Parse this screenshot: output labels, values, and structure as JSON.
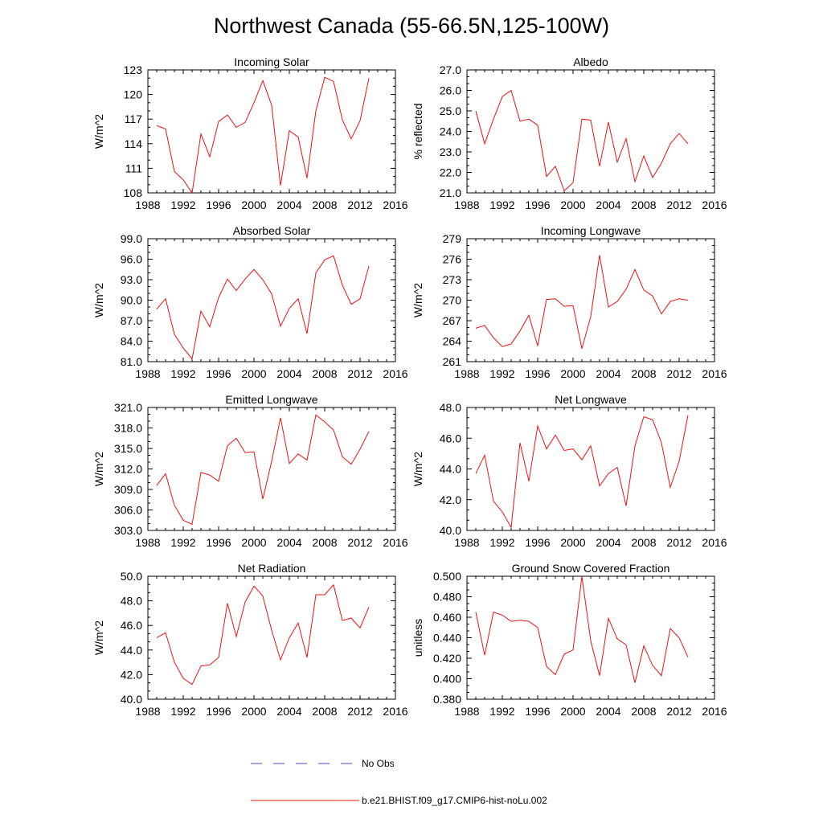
{
  "figure_title": "Northwest Canada (55-66.5N,125-100W)",
  "legend": [
    {
      "label": "No Obs",
      "color": "#4b4bcc",
      "style": "dashed"
    },
    {
      "label": "b.e21.BHIST.f09_g17.CMIP6-hist-noLu.002",
      "color": "#ee1111",
      "style": "solid"
    }
  ],
  "chart_data": [
    {
      "type": "line",
      "title": "Incoming Solar",
      "ylabel": "W/m^2",
      "xlabel": "",
      "xlim": [
        1988,
        2016
      ],
      "ylim": [
        108,
        123
      ],
      "x_ticks": [
        "1988",
        "1992",
        "1996",
        "2000",
        "2004",
        "2008",
        "2012",
        "2016"
      ],
      "y_ticks": [
        "108",
        "111",
        "114",
        "117",
        "120",
        "123"
      ],
      "y_tick_values": [
        108,
        111,
        114,
        117,
        120,
        123
      ],
      "series": [
        {
          "name": "b.e21.BHIST.f09_g17.CMIP6-hist-noLu.002",
          "color": "#ee1111",
          "x": [
            1989,
            1990,
            1991,
            1992,
            1993,
            1994,
            1995,
            1996,
            1997,
            1998,
            1999,
            2000,
            2001,
            2002,
            2003,
            2004,
            2005,
            2006,
            2007,
            2008,
            2009,
            2010,
            2011,
            2012,
            2013
          ],
          "values": [
            116.2,
            115.8,
            110.6,
            109.6,
            108.0,
            115.2,
            112.4,
            116.7,
            117.5,
            116.0,
            116.6,
            119.0,
            121.7,
            118.7,
            108.9,
            115.6,
            114.8,
            109.8,
            118.0,
            122.1,
            121.6,
            116.9,
            114.6,
            116.8,
            122.0
          ]
        }
      ]
    },
    {
      "type": "line",
      "title": "Albedo",
      "ylabel": "% reflected",
      "xlabel": "",
      "xlim": [
        1988,
        2016
      ],
      "ylim": [
        21.0,
        27.0
      ],
      "x_ticks": [
        "1988",
        "1992",
        "1996",
        "2000",
        "2004",
        "2008",
        "2012",
        "2016"
      ],
      "y_ticks": [
        "21.0",
        "22.0",
        "23.0",
        "24.0",
        "25.0",
        "26.0",
        "27.0"
      ],
      "y_tick_values": [
        21,
        22,
        23,
        24,
        25,
        26,
        27
      ],
      "series": [
        {
          "name": "b.e21.BHIST.f09_g17.CMIP6-hist-noLu.002",
          "color": "#ee1111",
          "x": [
            1989,
            1990,
            1991,
            1992,
            1993,
            1994,
            1995,
            1996,
            1997,
            1998,
            1999,
            2000,
            2001,
            2002,
            2003,
            2004,
            2005,
            2006,
            2007,
            2008,
            2009,
            2010,
            2011,
            2012,
            2013
          ],
          "values": [
            25.0,
            23.4,
            24.6,
            25.7,
            26.0,
            24.5,
            24.6,
            24.3,
            21.8,
            22.3,
            21.1,
            21.5,
            24.6,
            24.55,
            22.3,
            24.45,
            22.5,
            23.65,
            21.55,
            22.8,
            21.75,
            22.45,
            23.4,
            23.9,
            23.4
          ]
        }
      ]
    },
    {
      "type": "line",
      "title": "Absorbed Solar",
      "ylabel": "W/m^2",
      "xlabel": "",
      "xlim": [
        1988,
        2016
      ],
      "ylim": [
        81.0,
        99.0
      ],
      "x_ticks": [
        "1988",
        "1992",
        "1996",
        "2000",
        "2004",
        "2008",
        "2012",
        "2016"
      ],
      "y_ticks": [
        "81.0",
        "84.0",
        "87.0",
        "90.0",
        "93.0",
        "96.0",
        "99.0"
      ],
      "y_tick_values": [
        81,
        84,
        87,
        90,
        93,
        96,
        99
      ],
      "series": [
        {
          "name": "b.e21.BHIST.f09_g17.CMIP6-hist-noLu.002",
          "color": "#ee1111",
          "x": [
            1989,
            1990,
            1991,
            1992,
            1993,
            1994,
            1995,
            1996,
            1997,
            1998,
            1999,
            2000,
            2001,
            2002,
            2003,
            2004,
            2005,
            2006,
            2007,
            2008,
            2009,
            2010,
            2011,
            2012,
            2013
          ],
          "values": [
            88.7,
            90.2,
            85.0,
            83.0,
            81.4,
            88.4,
            86.1,
            90.4,
            93.1,
            91.4,
            93.1,
            94.5,
            93.0,
            90.9,
            86.2,
            88.8,
            90.2,
            85.1,
            94.0,
            95.9,
            96.5,
            92.2,
            89.4,
            90.2,
            95.0
          ]
        }
      ]
    },
    {
      "type": "line",
      "title": "Incoming Longwave",
      "ylabel": "W/m^2",
      "xlabel": "",
      "xlim": [
        1988,
        2016
      ],
      "ylim": [
        261,
        279
      ],
      "x_ticks": [
        "1988",
        "1992",
        "1996",
        "2000",
        "2004",
        "2008",
        "2012",
        "2016"
      ],
      "y_ticks": [
        "261",
        "264",
        "267",
        "270",
        "273",
        "276",
        "279"
      ],
      "y_tick_values": [
        261,
        264,
        267,
        270,
        273,
        276,
        279
      ],
      "series": [
        {
          "name": "b.e21.BHIST.f09_g17.CMIP6-hist-noLu.002",
          "color": "#ee1111",
          "x": [
            1989,
            1990,
            1991,
            1992,
            1993,
            1994,
            1995,
            1996,
            1997,
            1998,
            1999,
            2000,
            2001,
            2002,
            2003,
            2004,
            2005,
            2006,
            2007,
            2008,
            2009,
            2010,
            2011,
            2012,
            2013
          ],
          "values": [
            265.9,
            266.3,
            264.5,
            263.2,
            263.6,
            265.5,
            267.8,
            263.3,
            270.1,
            270.2,
            269.1,
            269.2,
            262.9,
            267.6,
            276.6,
            269.0,
            269.8,
            271.6,
            274.5,
            271.5,
            270.6,
            268.0,
            269.8,
            270.2,
            270.0
          ]
        }
      ]
    },
    {
      "type": "line",
      "title": "Emitted Longwave",
      "ylabel": "W/m^2",
      "xlabel": "",
      "xlim": [
        1988,
        2016
      ],
      "ylim": [
        303.0,
        321.0
      ],
      "x_ticks": [
        "1988",
        "1992",
        "1996",
        "2000",
        "2004",
        "2008",
        "2012",
        "2016"
      ],
      "y_ticks": [
        "303.0",
        "306.0",
        "309.0",
        "312.0",
        "315.0",
        "318.0",
        "321.0"
      ],
      "y_tick_values": [
        303,
        306,
        309,
        312,
        315,
        318,
        321
      ],
      "series": [
        {
          "name": "b.e21.BHIST.f09_g17.CMIP6-hist-noLu.002",
          "color": "#ee1111",
          "x": [
            1989,
            1990,
            1991,
            1992,
            1993,
            1994,
            1995,
            1996,
            1997,
            1998,
            1999,
            2000,
            2001,
            2002,
            2003,
            2004,
            2005,
            2006,
            2007,
            2008,
            2009,
            2010,
            2011,
            2012,
            2013
          ],
          "values": [
            309.6,
            311.3,
            306.7,
            304.5,
            303.9,
            311.5,
            311.1,
            310.2,
            315.4,
            316.5,
            314.4,
            314.5,
            307.6,
            313.1,
            319.5,
            312.8,
            314.2,
            313.3,
            319.9,
            318.9,
            317.7,
            313.8,
            312.7,
            314.9,
            317.5
          ]
        }
      ]
    },
    {
      "type": "line",
      "title": "Net Longwave",
      "ylabel": "W/m^2",
      "xlabel": "",
      "xlim": [
        1988,
        2016
      ],
      "ylim": [
        40.0,
        48.0
      ],
      "x_ticks": [
        "1988",
        "1992",
        "1996",
        "2000",
        "2004",
        "2008",
        "2012",
        "2016"
      ],
      "y_ticks": [
        "40.0",
        "42.0",
        "44.0",
        "46.0",
        "48.0"
      ],
      "y_tick_values": [
        40,
        42,
        44,
        46,
        48
      ],
      "series": [
        {
          "name": "b.e21.BHIST.f09_g17.CMIP6-hist-noLu.002",
          "color": "#ee1111",
          "x": [
            1989,
            1990,
            1991,
            1992,
            1993,
            1994,
            1995,
            1996,
            1997,
            1998,
            1999,
            2000,
            2001,
            2002,
            2003,
            2004,
            2005,
            2006,
            2007,
            2008,
            2009,
            2010,
            2011,
            2012,
            2013
          ],
          "values": [
            43.7,
            44.9,
            41.9,
            41.2,
            40.2,
            45.7,
            43.2,
            46.8,
            45.3,
            46.2,
            45.2,
            45.3,
            44.6,
            45.5,
            42.9,
            43.7,
            44.1,
            41.6,
            45.5,
            47.4,
            47.2,
            45.7,
            42.8,
            44.5,
            47.5
          ]
        }
      ]
    },
    {
      "type": "line",
      "title": "Net Radiation",
      "ylabel": "W/m^2",
      "xlabel": "",
      "xlim": [
        1988,
        2016
      ],
      "ylim": [
        40.0,
        50.0
      ],
      "x_ticks": [
        "1988",
        "1992",
        "1996",
        "2000",
        "2004",
        "2008",
        "2012",
        "2016"
      ],
      "y_ticks": [
        "40.0",
        "42.0",
        "44.0",
        "46.0",
        "48.0",
        "50.0"
      ],
      "y_tick_values": [
        40,
        42,
        44,
        46,
        48,
        50
      ],
      "series": [
        {
          "name": "b.e21.BHIST.f09_g17.CMIP6-hist-noLu.002",
          "color": "#ee1111",
          "x": [
            1989,
            1990,
            1991,
            1992,
            1993,
            1994,
            1995,
            1996,
            1997,
            1998,
            1999,
            2000,
            2001,
            2002,
            2003,
            2004,
            2005,
            2006,
            2007,
            2008,
            2009,
            2010,
            2011,
            2012,
            2013
          ],
          "values": [
            45.0,
            45.4,
            43.0,
            41.7,
            41.2,
            42.7,
            42.8,
            43.4,
            47.8,
            45.1,
            47.9,
            49.2,
            48.4,
            45.6,
            43.2,
            45.0,
            46.2,
            43.4,
            48.5,
            48.5,
            49.3,
            46.4,
            46.6,
            45.8,
            47.5
          ]
        }
      ]
    },
    {
      "type": "line",
      "title": "Ground Snow Covered Fraction",
      "ylabel": "unitless",
      "xlabel": "",
      "xlim": [
        1988,
        2016
      ],
      "ylim": [
        0.38,
        0.5
      ],
      "x_ticks": [
        "1988",
        "1992",
        "1996",
        "2000",
        "2004",
        "2008",
        "2012",
        "2016"
      ],
      "y_ticks": [
        "0.380",
        "0.400",
        "0.420",
        "0.440",
        "0.460",
        "0.480",
        "0.500"
      ],
      "y_tick_values": [
        0.38,
        0.4,
        0.42,
        0.44,
        0.46,
        0.48,
        0.5
      ],
      "series": [
        {
          "name": "b.e21.BHIST.f09_g17.CMIP6-hist-noLu.002",
          "color": "#ee1111",
          "x": [
            1989,
            1990,
            1991,
            1992,
            1993,
            1994,
            1995,
            1996,
            1997,
            1998,
            1999,
            2000,
            2001,
            2002,
            2003,
            2004,
            2005,
            2006,
            2007,
            2008,
            2009,
            2010,
            2011,
            2012,
            2013
          ],
          "values": [
            0.465,
            0.423,
            0.465,
            0.462,
            0.456,
            0.457,
            0.456,
            0.45,
            0.412,
            0.404,
            0.424,
            0.428,
            0.5,
            0.437,
            0.403,
            0.459,
            0.439,
            0.433,
            0.396,
            0.432,
            0.413,
            0.403,
            0.449,
            0.44,
            0.421
          ]
        }
      ]
    }
  ]
}
